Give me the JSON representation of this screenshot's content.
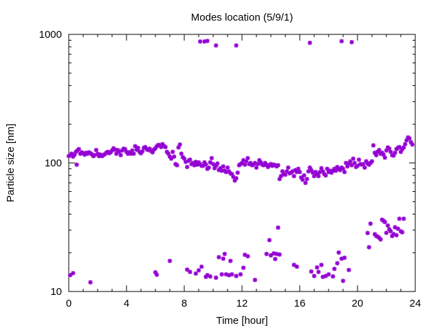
{
  "chart_data": {
    "type": "scatter",
    "title": "Modes location (5/9/1)",
    "xlabel": "Time [hour]",
    "ylabel": "Particle size [nm]",
    "xlim": [
      0,
      24
    ],
    "ylim": [
      10,
      1000
    ],
    "yscale": "log",
    "grid": false,
    "marker_color": "#9400D3",
    "x_ticks": [
      0,
      4,
      8,
      12,
      16,
      20,
      24
    ],
    "y_ticks": [
      10,
      100,
      1000
    ],
    "x_tick_labels": [
      "0",
      "4",
      "8",
      "12",
      "16",
      "20",
      "24"
    ],
    "y_tick_labels": [
      "10",
      "100",
      "1000"
    ],
    "series": [
      {
        "values": [
          [
            0.0,
            113
          ],
          [
            0.1,
            115
          ],
          [
            0.2,
            118
          ],
          [
            0.3,
            112
          ],
          [
            0.4,
            116
          ],
          [
            0.5,
            122
          ],
          [
            0.55,
            97
          ],
          [
            0.6,
            125
          ],
          [
            0.7,
            128
          ],
          [
            0.8,
            118
          ],
          [
            0.9,
            121
          ],
          [
            1.0,
            119
          ],
          [
            1.1,
            116
          ],
          [
            1.2,
            120
          ],
          [
            1.3,
            118
          ],
          [
            1.4,
            121
          ],
          [
            1.5,
            119
          ],
          [
            1.6,
            117
          ],
          [
            1.7,
            113
          ],
          [
            1.8,
            115
          ],
          [
            1.9,
            126
          ],
          [
            2.0,
            118
          ],
          [
            2.1,
            113
          ],
          [
            2.2,
            116
          ],
          [
            2.3,
            113
          ],
          [
            2.4,
            115
          ],
          [
            2.5,
            117
          ],
          [
            2.6,
            120
          ],
          [
            2.7,
            122
          ],
          [
            2.8,
            119
          ],
          [
            2.9,
            121
          ],
          [
            3.0,
            125
          ],
          [
            3.1,
            130
          ],
          [
            3.2,
            127
          ],
          [
            3.3,
            118
          ],
          [
            3.4,
            126
          ],
          [
            3.5,
            122
          ],
          [
            3.6,
            115
          ],
          [
            3.7,
            125
          ],
          [
            3.8,
            129
          ],
          [
            3.9,
            128
          ],
          [
            4.0,
            122
          ],
          [
            4.1,
            118
          ],
          [
            4.2,
            121
          ],
          [
            4.3,
            118
          ],
          [
            4.4,
            125
          ],
          [
            4.5,
            118
          ],
          [
            4.6,
            135
          ],
          [
            4.7,
            127
          ],
          [
            4.8,
            131
          ],
          [
            4.9,
            122
          ],
          [
            5.0,
            119
          ],
          [
            5.1,
            123
          ],
          [
            5.2,
            131
          ],
          [
            5.3,
            133
          ],
          [
            5.4,
            128
          ],
          [
            5.5,
            126
          ],
          [
            5.6,
            129
          ],
          [
            5.7,
            124
          ],
          [
            5.8,
            121
          ],
          [
            5.9,
            127
          ],
          [
            6.0,
            130
          ],
          [
            6.1,
            135
          ],
          [
            6.2,
            138
          ],
          [
            6.3,
            138
          ],
          [
            6.4,
            133
          ],
          [
            6.5,
            140
          ],
          [
            6.6,
            135
          ],
          [
            6.7,
            133
          ],
          [
            6.8,
            122
          ],
          [
            6.9,
            118
          ],
          [
            7.0,
            112
          ],
          [
            7.1,
            108
          ],
          [
            7.2,
            122
          ],
          [
            7.3,
            112
          ],
          [
            7.4,
            98
          ],
          [
            7.5,
            96
          ],
          [
            7.6,
            132
          ],
          [
            7.7,
            139
          ],
          [
            7.8,
            118
          ],
          [
            7.9,
            111
          ],
          [
            8.0,
            108
          ],
          [
            8.1,
            102
          ],
          [
            8.2,
            93
          ],
          [
            8.3,
            104
          ],
          [
            8.4,
            106
          ],
          [
            8.5,
            98
          ],
          [
            8.6,
            100
          ],
          [
            8.7,
            96
          ],
          [
            8.8,
            102
          ],
          [
            8.9,
            97
          ],
          [
            9.0,
            101
          ],
          [
            9.1,
            98
          ],
          [
            9.2,
            95
          ],
          [
            9.3,
            95
          ],
          [
            9.4,
            101
          ],
          [
            9.5,
            97
          ],
          [
            9.6,
            90
          ],
          [
            9.7,
            92
          ],
          [
            9.8,
            101
          ],
          [
            9.9,
            109
          ],
          [
            10.0,
            98
          ],
          [
            10.1,
            91
          ],
          [
            10.2,
            95
          ],
          [
            10.3,
            99
          ],
          [
            10.4,
            88
          ],
          [
            10.5,
            91
          ],
          [
            10.6,
            87
          ],
          [
            10.7,
            94
          ],
          [
            10.8,
            87
          ],
          [
            10.9,
            85
          ],
          [
            11.0,
            92
          ],
          [
            11.1,
            86
          ],
          [
            11.2,
            83
          ],
          [
            11.3,
            82
          ],
          [
            11.4,
            78
          ],
          [
            11.5,
            73
          ],
          [
            11.6,
            76
          ],
          [
            11.7,
            84
          ],
          [
            11.8,
            96
          ],
          [
            11.9,
            98
          ],
          [
            12.0,
            100
          ],
          [
            12.1,
            105
          ],
          [
            12.2,
            97
          ],
          [
            12.3,
            103
          ],
          [
            12.4,
            109
          ],
          [
            12.5,
            98
          ],
          [
            12.6,
            100
          ],
          [
            12.7,
            96
          ],
          [
            12.8,
            97
          ],
          [
            12.9,
            100
          ],
          [
            13.0,
            92
          ],
          [
            13.1,
            98
          ],
          [
            13.2,
            105
          ],
          [
            13.3,
            101
          ],
          [
            13.4,
            97
          ],
          [
            13.5,
            96
          ],
          [
            13.6,
            100
          ],
          [
            13.7,
            97
          ],
          [
            13.8,
            93
          ],
          [
            13.9,
            96
          ],
          [
            14.0,
            98
          ],
          [
            14.1,
            95
          ],
          [
            14.2,
            97
          ],
          [
            14.3,
            96
          ],
          [
            14.4,
            94
          ],
          [
            14.5,
            96
          ],
          [
            14.6,
            75
          ],
          [
            14.7,
            79
          ],
          [
            14.8,
            86
          ],
          [
            14.9,
            82
          ],
          [
            15.0,
            81
          ],
          [
            15.1,
            86
          ],
          [
            15.2,
            92
          ],
          [
            15.3,
            83
          ],
          [
            15.4,
            84
          ],
          [
            15.5,
            86
          ],
          [
            15.6,
            79
          ],
          [
            15.7,
            88
          ],
          [
            15.8,
            85
          ],
          [
            15.9,
            90
          ],
          [
            16.0,
            85
          ],
          [
            16.1,
            77
          ],
          [
            16.2,
            74
          ],
          [
            16.3,
            80
          ],
          [
            16.4,
            70
          ],
          [
            16.5,
            75
          ],
          [
            16.6,
            86
          ],
          [
            16.7,
            92
          ],
          [
            16.8,
            88
          ],
          [
            16.9,
            84
          ],
          [
            17.0,
            79
          ],
          [
            17.1,
            85
          ],
          [
            17.2,
            82
          ],
          [
            17.3,
            79
          ],
          [
            17.4,
            85
          ],
          [
            17.5,
            91
          ],
          [
            17.6,
            86
          ],
          [
            17.7,
            82
          ],
          [
            17.8,
            80
          ],
          [
            17.9,
            90
          ],
          [
            18.0,
            85
          ],
          [
            18.1,
            87
          ],
          [
            18.2,
            84
          ],
          [
            18.3,
            87
          ],
          [
            18.4,
            90
          ],
          [
            18.5,
            87
          ],
          [
            18.6,
            93
          ],
          [
            18.7,
            90
          ],
          [
            18.8,
            88
          ],
          [
            18.9,
            92
          ],
          [
            19.0,
            90
          ],
          [
            19.1,
            85
          ],
          [
            19.2,
            100
          ],
          [
            19.3,
            94
          ],
          [
            19.4,
            99
          ],
          [
            19.5,
            103
          ],
          [
            19.6,
            96
          ],
          [
            19.7,
            108
          ],
          [
            19.8,
            100
          ],
          [
            19.9,
            93
          ],
          [
            20.0,
            95
          ],
          [
            20.1,
            106
          ],
          [
            20.2,
            98
          ],
          [
            20.3,
            97
          ],
          [
            20.4,
            98
          ],
          [
            20.5,
            92
          ],
          [
            20.6,
            103
          ],
          [
            20.7,
            99
          ],
          [
            20.8,
            97
          ],
          [
            20.9,
            100
          ],
          [
            21.0,
            103
          ],
          [
            21.1,
            137
          ],
          [
            21.2,
            120
          ],
          [
            21.3,
            115
          ],
          [
            21.4,
            122
          ],
          [
            21.5,
            126
          ],
          [
            21.6,
            118
          ],
          [
            21.7,
            120
          ],
          [
            21.8,
            116
          ],
          [
            21.9,
            110
          ],
          [
            22.0,
            125
          ],
          [
            22.1,
            132
          ],
          [
            22.2,
            129
          ],
          [
            22.3,
            122
          ],
          [
            22.4,
            115
          ],
          [
            22.5,
            114
          ],
          [
            22.6,
            120
          ],
          [
            22.7,
            128
          ],
          [
            22.8,
            131
          ],
          [
            22.9,
            133
          ],
          [
            23.0,
            122
          ],
          [
            23.1,
            128
          ],
          [
            23.2,
            132
          ],
          [
            23.3,
            140
          ],
          [
            23.4,
            150
          ],
          [
            23.5,
            158
          ],
          [
            23.6,
            155
          ],
          [
            23.7,
            145
          ],
          [
            23.8,
            139
          ],
          [
            9.1,
            880
          ],
          [
            9.4,
            880
          ],
          [
            9.6,
            890
          ],
          [
            10.2,
            820
          ],
          [
            11.6,
            820
          ],
          [
            16.7,
            860
          ],
          [
            18.9,
            885
          ],
          [
            19.6,
            870
          ],
          [
            0.1,
            13.4
          ],
          [
            0.3,
            13.9
          ],
          [
            1.5,
            11.8
          ],
          [
            6.0,
            14.1
          ],
          [
            6.1,
            13.5
          ],
          [
            7.0,
            17.3
          ],
          [
            8.2,
            14.8
          ],
          [
            8.4,
            14.2
          ],
          [
            8.8,
            13.8
          ],
          [
            9.0,
            14.6
          ],
          [
            9.2,
            15.6
          ],
          [
            9.5,
            13.0
          ],
          [
            9.6,
            13.4
          ],
          [
            9.8,
            13.1
          ],
          [
            10.2,
            12.8
          ],
          [
            10.4,
            18.5
          ],
          [
            10.6,
            13.6
          ],
          [
            10.7,
            18.0
          ],
          [
            10.8,
            19.6
          ],
          [
            10.9,
            13.6
          ],
          [
            11.1,
            13.4
          ],
          [
            11.2,
            17.3
          ],
          [
            11.3,
            13.6
          ],
          [
            11.6,
            13.2
          ],
          [
            11.9,
            13.6
          ],
          [
            12.1,
            15.3
          ],
          [
            12.2,
            19.3
          ],
          [
            12.4,
            18.8
          ],
          [
            12.9,
            12.3
          ],
          [
            13.7,
            19.6
          ],
          [
            13.9,
            25.1
          ],
          [
            14.0,
            19.1
          ],
          [
            14.2,
            19.8
          ],
          [
            14.3,
            17.9
          ],
          [
            14.4,
            19.6
          ],
          [
            14.5,
            31.4
          ],
          [
            14.6,
            19.4
          ],
          [
            15.6,
            16.1
          ],
          [
            15.8,
            15.6
          ],
          [
            16.8,
            14.3
          ],
          [
            17.0,
            13.2
          ],
          [
            17.2,
            15.4
          ],
          [
            17.3,
            14.2
          ],
          [
            17.5,
            16.1
          ],
          [
            17.6,
            13.0
          ],
          [
            17.8,
            13.2
          ],
          [
            18.0,
            13.6
          ],
          [
            18.3,
            13.1
          ],
          [
            18.4,
            15.0
          ],
          [
            18.6,
            16.6
          ],
          [
            18.7,
            20.1
          ],
          [
            18.9,
            18.0
          ],
          [
            19.0,
            12.1
          ],
          [
            19.1,
            18.3
          ],
          [
            19.4,
            14.7
          ],
          [
            20.7,
            28.5
          ],
          [
            20.8,
            22.1
          ],
          [
            20.9,
            33.7
          ],
          [
            21.2,
            27.9
          ],
          [
            21.3,
            27.0
          ],
          [
            21.4,
            26.7
          ],
          [
            21.5,
            26.2
          ],
          [
            21.6,
            25.4
          ],
          [
            21.7,
            36.2
          ],
          [
            21.8,
            35.5
          ],
          [
            22.0,
            28.6
          ],
          [
            22.2,
            30.5
          ],
          [
            22.3,
            29.4
          ],
          [
            22.4,
            27.0
          ],
          [
            22.5,
            28.0
          ],
          [
            22.6,
            31.6
          ],
          [
            22.7,
            27.4
          ],
          [
            22.8,
            30.8
          ],
          [
            22.9,
            36.8
          ],
          [
            23.0,
            29.4
          ],
          [
            23.1,
            28.9
          ],
          [
            23.2,
            36.8
          ],
          [
            22.1,
            32.6
          ],
          [
            21.9,
            34.7
          ]
        ]
      }
    ]
  }
}
